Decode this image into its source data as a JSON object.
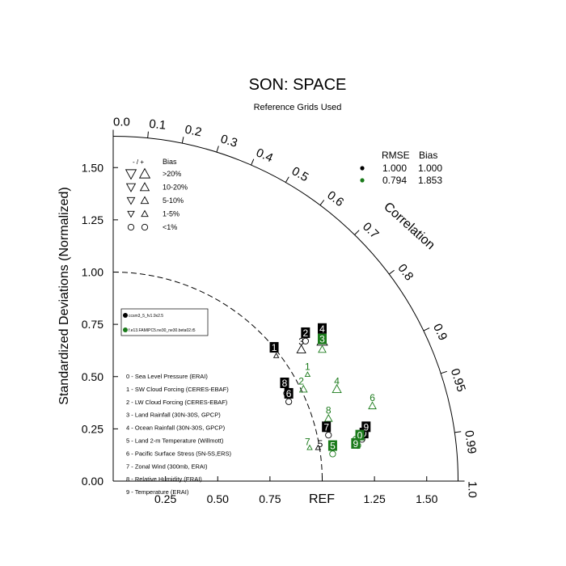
{
  "chart_data": {
    "type": "scatter",
    "title": "SON: SPACE",
    "subtitle": "Reference Grids Used",
    "ylabel": "Standardized Deviations (Normalized)",
    "arc_label": "Correlation",
    "ref_label": "REF",
    "std_range": [
      0,
      1.65
    ],
    "y_ticks": [
      "0.00",
      "0.25",
      "0.50",
      "0.75",
      "1.00",
      "1.25",
      "1.50"
    ],
    "x_ticks": [
      "0.25",
      "0.50",
      "0.75",
      "1.25",
      "1.50"
    ],
    "corr_ticks": [
      "0.0",
      "0.1",
      "0.2",
      "0.3",
      "0.4",
      "0.5",
      "0.6",
      "0.7",
      "0.8",
      "0.9",
      "0.95",
      "0.99",
      "1.0"
    ],
    "bias_legend": {
      "header_sign": "- / +",
      "header": "Bias",
      "rows": [
        ">20%",
        "10-20%",
        "5-10%",
        "1-5%",
        "<1%"
      ]
    },
    "summary_table": {
      "headers": [
        "RMSE",
        "Bias"
      ],
      "rows": [
        {
          "color": "#000000",
          "rmse": "1.000",
          "bias": "1.000"
        },
        {
          "color": "#1a7a1a",
          "rmse": "0.794",
          "bias": "1.853"
        }
      ]
    },
    "cases": [
      {
        "name": "ccsm3_5_fv1.9x2.5",
        "color": "#000000"
      },
      {
        "name": "f.e13.FAMIPC5.ne30_ne30.beta02.t5",
        "color": "#1a7a1a"
      }
    ],
    "variables": [
      "0 - Sea Level Pressure (ERAI)",
      "1 - SW Cloud Forcing (CERES-EBAF)",
      "2 - LW Cloud Forcing (CERES-EBAF)",
      "3 - Land Rainfall (30N-30S, GPCP)",
      "4 - Ocean Rainfall (30N-30S, GPCP)",
      "5 - Land 2-m Temperature (Willmott)",
      "6 - Pacific Surface Stress (5N-5S,ERS)",
      "7 - Zonal Wind (300mb, ERAI)",
      "8 - Relative Humidity (ERAI)",
      "9 - Temperature (ERAI)"
    ],
    "series": [
      {
        "name": "ccsm3_5_fv1.9x2.5",
        "color": "#000000",
        "points": [
          {
            "id": "0",
            "x": 1.19,
            "y": 0.2,
            "marker": "circle",
            "size": 3
          },
          {
            "id": "1",
            "x": 0.78,
            "y": 0.6,
            "marker": "up",
            "size": 1
          },
          {
            "id": "2",
            "x": 0.92,
            "y": 0.67,
            "marker": "circle",
            "size": 3
          },
          {
            "id": "3",
            "x": 0.9,
            "y": 0.63,
            "marker": "up",
            "size": 4
          },
          {
            "id": "4",
            "x": 1.0,
            "y": 0.67,
            "marker": "up",
            "size": 5
          },
          {
            "id": "5",
            "x": 0.98,
            "y": 0.16,
            "marker": "up",
            "size": 1
          },
          {
            "id": "6",
            "x": 0.84,
            "y": 0.38,
            "marker": "circle",
            "size": 3
          },
          {
            "id": "7",
            "x": 1.03,
            "y": 0.22,
            "marker": "circle",
            "size": 3
          },
          {
            "id": "8",
            "x": 0.83,
            "y": 0.42,
            "marker": "circle",
            "size": 3
          },
          {
            "id": "9",
            "x": 1.2,
            "y": 0.23,
            "marker": "circle",
            "size": 3
          }
        ]
      },
      {
        "name": "f.e13.FAMIPC5.ne30_ne30.beta02.t5",
        "color": "#1a7a1a",
        "points": [
          {
            "id": "0",
            "x": 1.17,
            "y": 0.17,
            "marker": "circle",
            "size": 3
          },
          {
            "id": "1",
            "x": 0.93,
            "y": 0.51,
            "marker": "up",
            "size": 1
          },
          {
            "id": "2",
            "x": 0.91,
            "y": 0.44,
            "marker": "up",
            "size": 3
          },
          {
            "id": "3",
            "x": 1.0,
            "y": 0.63,
            "marker": "up",
            "size": 3
          },
          {
            "id": "4",
            "x": 1.07,
            "y": 0.44,
            "marker": "up",
            "size": 4
          },
          {
            "id": "5",
            "x": 1.05,
            "y": 0.13,
            "marker": "circle",
            "size": 3
          },
          {
            "id": "6",
            "x": 1.24,
            "y": 0.36,
            "marker": "up",
            "size": 3
          },
          {
            "id": "7",
            "x": 0.94,
            "y": 0.16,
            "marker": "up",
            "size": 1
          },
          {
            "id": "8",
            "x": 1.03,
            "y": 0.3,
            "marker": "up",
            "size": 3
          },
          {
            "id": "9",
            "x": 1.16,
            "y": 0.2,
            "marker": "circle",
            "size": 3
          }
        ]
      }
    ],
    "labels": [
      {
        "series": 0,
        "id": "0",
        "x": 1.2,
        "y": 0.23,
        "style": "box"
      },
      {
        "series": 0,
        "id": "1",
        "x": 0.77,
        "y": 0.64,
        "style": "box"
      },
      {
        "series": 0,
        "id": "2",
        "x": 0.92,
        "y": 0.71,
        "style": "box"
      },
      {
        "series": 0,
        "id": "3",
        "x": 0.9,
        "y": 0.67,
        "style": "plain"
      },
      {
        "series": 0,
        "id": "4",
        "x": 1.0,
        "y": 0.73,
        "style": "box"
      },
      {
        "series": 0,
        "id": "5",
        "x": 0.99,
        "y": 0.18,
        "style": "plain"
      },
      {
        "series": 0,
        "id": "6",
        "x": 0.84,
        "y": 0.42,
        "style": "box"
      },
      {
        "series": 0,
        "id": "7",
        "x": 1.02,
        "y": 0.26,
        "style": "box"
      },
      {
        "series": 0,
        "id": "8",
        "x": 0.82,
        "y": 0.47,
        "style": "box"
      },
      {
        "series": 0,
        "id": "9",
        "x": 1.21,
        "y": 0.26,
        "style": "box"
      },
      {
        "series": 1,
        "id": "0",
        "x": 1.18,
        "y": 0.22,
        "style": "box"
      },
      {
        "series": 1,
        "id": "1",
        "x": 0.93,
        "y": 0.55,
        "style": "plain"
      },
      {
        "series": 1,
        "id": "2",
        "x": 0.9,
        "y": 0.48,
        "style": "plain"
      },
      {
        "series": 1,
        "id": "3",
        "x": 1.0,
        "y": 0.68,
        "style": "box"
      },
      {
        "series": 1,
        "id": "4",
        "x": 1.07,
        "y": 0.48,
        "style": "plain"
      },
      {
        "series": 1,
        "id": "5",
        "x": 1.05,
        "y": 0.17,
        "style": "box"
      },
      {
        "series": 1,
        "id": "6",
        "x": 1.24,
        "y": 0.4,
        "style": "plain"
      },
      {
        "series": 1,
        "id": "7",
        "x": 0.93,
        "y": 0.19,
        "style": "plain"
      },
      {
        "series": 1,
        "id": "8",
        "x": 1.03,
        "y": 0.34,
        "style": "plain"
      },
      {
        "series": 1,
        "id": "9",
        "x": 1.16,
        "y": 0.18,
        "style": "box"
      }
    ]
  }
}
